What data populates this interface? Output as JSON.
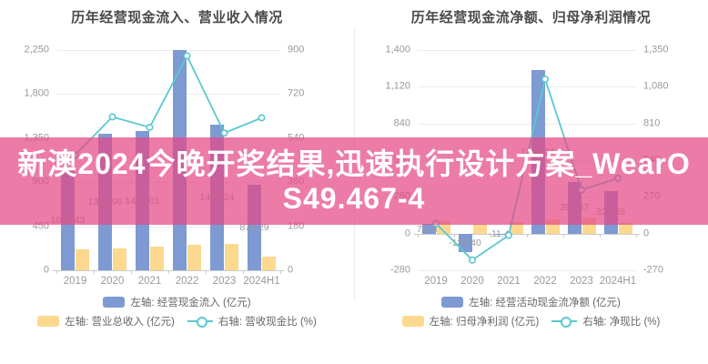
{
  "overlay": {
    "text": "新澳2024今晚开奖结果,迅速执行设计方案_WearOS49.467-4",
    "line1": "新澳2024今晚开奖结果,迅速执行设计方案_WearO",
    "line2": "S49.467-4",
    "background_color": "#e54886",
    "background_opacity": 0.72,
    "text_color": "#ffffff"
  },
  "colors": {
    "bar_blue": "#7e9ad3",
    "bar_yellow": "#fcd98f",
    "line_teal": "#5ac8cf",
    "grid": "#ececec",
    "axis": "#cccccc",
    "tick_text": "#999999",
    "title_text": "#4a4a4a",
    "legend_text": "#666666"
  },
  "chart_data": [
    {
      "type": "bar",
      "title": "历年经营现金流入、营业收入情况",
      "categories": [
        "2019",
        "2020",
        "2021",
        "2022",
        "2023",
        "2024H1"
      ],
      "left_axis": {
        "ticks": [
          "2,250",
          "1,800",
          "1,350",
          "900",
          "450",
          "0"
        ],
        "range": [
          0,
          2250
        ]
      },
      "right_axis": {
        "ticks": [
          "900",
          "720",
          "540",
          "360",
          "180",
          "0"
        ],
        "range": [
          0,
          900
        ]
      },
      "series": [
        {
          "name": "左轴: 经营现金流入 (亿元)",
          "type": "bar",
          "axis": "left",
          "color": "#7e9ad3",
          "values": [
            1013.43,
            1391.96,
            1420.01,
            2250,
            1486.24,
            872.29
          ],
          "labels": [
            "1013.43",
            "1391.96",
            "1420.01",
            "",
            "1486.24",
            "872.29"
          ]
        },
        {
          "name": "左轴: 营业总收入 (亿元)",
          "type": "bar",
          "axis": "left",
          "color": "#fcd98f",
          "values": [
            215,
            222,
            243,
            257,
            265,
            140
          ],
          "labels": [
            "",
            "",
            "",
            "",
            "",
            ""
          ]
        },
        {
          "name": "右轴: 营收现金比 (%)",
          "type": "line",
          "axis": "right",
          "color": "#5ac8cf",
          "values": [
            471,
            627,
            584,
            876,
            561,
            623
          ]
        }
      ],
      "legend_rows": [
        [
          0
        ],
        [
          1,
          2
        ]
      ]
    },
    {
      "type": "bar",
      "title": "历年经营现金流净额、归母净利润情况",
      "categories": [
        "2019",
        "2020",
        "2021",
        "2022",
        "2023",
        "2024H1"
      ],
      "left_axis": {
        "ticks": [
          "1,400",
          "1,120",
          "840",
          "560",
          "280",
          "0",
          "-280"
        ],
        "range": [
          -280,
          1400
        ]
      },
      "right_axis": {
        "ticks": [
          "1,350",
          "1,080",
          "810",
          "540",
          "270",
          "0",
          "-270"
        ],
        "range": [
          -270,
          1350
        ]
      },
      "series": [
        {
          "name": "左轴: 经营活动现金流净额 (亿元)",
          "type": "bar",
          "axis": "left",
          "color": "#7e9ad3",
          "values": [
            71.38,
            -138.4,
            -11.47,
            1250.31,
            391.67,
            325.85
          ],
          "labels": [
            "71.38",
            "-138.40",
            "-11.47",
            "1250.31",
            "391.67",
            "325.85"
          ]
        },
        {
          "name": "左轴: 归母净利润 (亿元)",
          "type": "bar",
          "axis": "left",
          "color": "#fcd98f",
          "values": [
            95,
            72,
            85,
            110,
            120,
            78
          ],
          "labels": [
            "",
            "",
            "",
            "",
            "",
            ""
          ]
        },
        {
          "name": "右轴: 净现比 (%)",
          "type": "line",
          "axis": "right",
          "color": "#5ac8cf",
          "values": [
            75,
            -195,
            -13,
            1136,
            321,
            407
          ]
        }
      ],
      "legend_rows": [
        [
          0
        ],
        [
          1,
          2
        ]
      ]
    }
  ]
}
